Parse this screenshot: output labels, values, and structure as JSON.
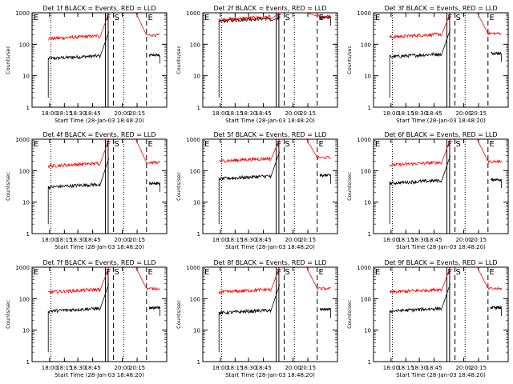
{
  "chart_data": [
    {
      "type": "line",
      "title": "Det 1f BLACK = Events, RED = LLD",
      "ylabel": "Counts/sec",
      "xlabel": "Start Time (28-Jan-03 18:48:20)",
      "x_ticks": [
        "18:00",
        "18:15",
        "18:30",
        "18:45",
        "20:00",
        "20:15"
      ],
      "y_ticks": [
        "1",
        "10",
        "100",
        "1000"
      ],
      "yscale": "log",
      "ylim": [
        1,
        1000
      ],
      "markers": [
        "F",
        "S",
        "E"
      ],
      "series": [
        {
          "name": "BLACK = Events",
          "color": "#000000",
          "level": 35,
          "flare_peak": 250
        },
        {
          "name": "RED = LLD",
          "color": "#ff0000",
          "level": 150,
          "flare_peak": 1000
        }
      ]
    },
    {
      "type": "line",
      "title": "Det 2f BLACK = Events, RED = LLD",
      "ylabel": "Counts/sec",
      "xlabel": "Start Time (28-Jan-03 18:48:20)",
      "x_ticks": [
        "18:00",
        "18:15",
        "18:30",
        "18:45",
        "20:00",
        "20:15"
      ],
      "y_ticks": [
        "1",
        "10",
        "100",
        "1000"
      ],
      "yscale": "log",
      "ylim": [
        1,
        1000
      ],
      "markers": [
        "F",
        "S",
        "E"
      ],
      "series": [
        {
          "name": "BLACK = Events",
          "color": "#000000",
          "level": 550,
          "flare_peak": 700
        },
        {
          "name": "RED = LLD",
          "color": "#ff0000",
          "level": 600,
          "flare_peak": 1000
        }
      ]
    },
    {
      "type": "line",
      "title": "Det 3f BLACK = Events, RED = LLD",
      "ylabel": "Counts/sec",
      "xlabel": "Start Time (28-Jan-03 18:48:20)",
      "x_ticks": [
        "18:00",
        "18:15",
        "18:30",
        "18:45",
        "20:00",
        "20:15"
      ],
      "y_ticks": [
        "1",
        "10",
        "100",
        "1000"
      ],
      "yscale": "log",
      "ylim": [
        1,
        1000
      ],
      "markers": [
        "F",
        "S",
        "E"
      ],
      "series": [
        {
          "name": "BLACK = Events",
          "color": "#000000",
          "level": 40,
          "flare_peak": 300
        },
        {
          "name": "RED = LLD",
          "color": "#ff0000",
          "level": 170,
          "flare_peak": 1000
        }
      ]
    },
    {
      "type": "line",
      "title": "Det 4f BLACK = Events, RED = LLD",
      "ylabel": "Counts/sec",
      "xlabel": "Start Time (28-Jan-03 18:48:20)",
      "x_ticks": [
        "18:00",
        "18:15",
        "18:30",
        "18:45",
        "20:00",
        "20:15"
      ],
      "y_ticks": [
        "1",
        "10",
        "100",
        "1000"
      ],
      "yscale": "log",
      "ylim": [
        1,
        1000
      ],
      "markers": [
        "F",
        "S",
        "E"
      ],
      "series": [
        {
          "name": "BLACK = Events",
          "color": "#000000",
          "level": 30,
          "flare_peak": 250
        },
        {
          "name": "RED = LLD",
          "color": "#ff0000",
          "level": 140,
          "flare_peak": 1000
        }
      ]
    },
    {
      "type": "line",
      "title": "Det 5f BLACK = Events, RED = LLD",
      "ylabel": "Counts/sec",
      "xlabel": "Start Time (28-Jan-03 18:48:20)",
      "x_ticks": [
        "18:00",
        "18:15",
        "18:30",
        "18:45",
        "20:00",
        "20:15"
      ],
      "y_ticks": [
        "1",
        "10",
        "100",
        "1000"
      ],
      "yscale": "log",
      "ylim": [
        1,
        1000
      ],
      "markers": [
        "F",
        "S",
        "E"
      ],
      "series": [
        {
          "name": "BLACK = Events",
          "color": "#000000",
          "level": 55,
          "flare_peak": 400
        },
        {
          "name": "RED = LLD",
          "color": "#ff0000",
          "level": 200,
          "flare_peak": 1000
        }
      ]
    },
    {
      "type": "line",
      "title": "Det 6f BLACK = Events, RED = LLD",
      "ylabel": "Counts/sec",
      "xlabel": "Start Time (28-Jan-03 18:48:20)",
      "x_ticks": [
        "18:00",
        "18:15",
        "18:30",
        "18:45",
        "20:00",
        "20:15"
      ],
      "y_ticks": [
        "1",
        "10",
        "100",
        "1000"
      ],
      "yscale": "log",
      "ylim": [
        1,
        1000
      ],
      "markers": [
        "F",
        "S",
        "E"
      ],
      "series": [
        {
          "name": "BLACK = Events",
          "color": "#000000",
          "level": 40,
          "flare_peak": 300
        },
        {
          "name": "RED = LLD",
          "color": "#ff0000",
          "level": 150,
          "flare_peak": 1000
        }
      ]
    },
    {
      "type": "line",
      "title": "Det 7f BLACK = Events, RED = LLD",
      "ylabel": "Counts/sec",
      "xlabel": "Start Time (28-Jan-03 18:48:20)",
      "x_ticks": [
        "18:00",
        "18:15",
        "18:30",
        "18:45",
        "20:00",
        "20:15"
      ],
      "y_ticks": [
        "1",
        "10",
        "100",
        "1000"
      ],
      "yscale": "log",
      "ylim": [
        1,
        1000
      ],
      "markers": [
        "F",
        "S",
        "E"
      ],
      "series": [
        {
          "name": "BLACK = Events",
          "color": "#000000",
          "level": 40,
          "flare_peak": 300
        },
        {
          "name": "RED = LLD",
          "color": "#ff0000",
          "level": 160,
          "flare_peak": 1000
        }
      ]
    },
    {
      "type": "line",
      "title": "Det 8f BLACK = Events, RED = LLD",
      "ylabel": "Counts/sec",
      "xlabel": "Start Time (28-Jan-03 18:48:20)",
      "x_ticks": [
        "18:00",
        "18:15",
        "18:30",
        "18:45",
        "20:00",
        "20:15"
      ],
      "y_ticks": [
        "1",
        "10",
        "100",
        "1000"
      ],
      "yscale": "log",
      "ylim": [
        1,
        1000
      ],
      "markers": [
        "F",
        "S",
        "E"
      ],
      "series": [
        {
          "name": "BLACK = Events",
          "color": "#000000",
          "level": 35,
          "flare_peak": 280
        },
        {
          "name": "RED = LLD",
          "color": "#ff0000",
          "level": 160,
          "flare_peak": 1000
        }
      ]
    },
    {
      "type": "line",
      "title": "Det 9f BLACK = Events, RED = LLD",
      "ylabel": "Counts/sec",
      "xlabel": "Start Time (28-Jan-03 18:48:20)",
      "x_ticks": [
        "18:00",
        "18:15",
        "18:30",
        "18:45",
        "20:00",
        "20:15"
      ],
      "y_ticks": [
        "1",
        "10",
        "100",
        "1000"
      ],
      "yscale": "log",
      "ylim": [
        1,
        1000
      ],
      "markers": [
        "F",
        "S",
        "E"
      ],
      "series": [
        {
          "name": "BLACK = Events",
          "color": "#000000",
          "level": 40,
          "flare_peak": 300
        },
        {
          "name": "RED = LLD",
          "color": "#ff0000",
          "level": 160,
          "flare_peak": 1000
        }
      ]
    }
  ]
}
